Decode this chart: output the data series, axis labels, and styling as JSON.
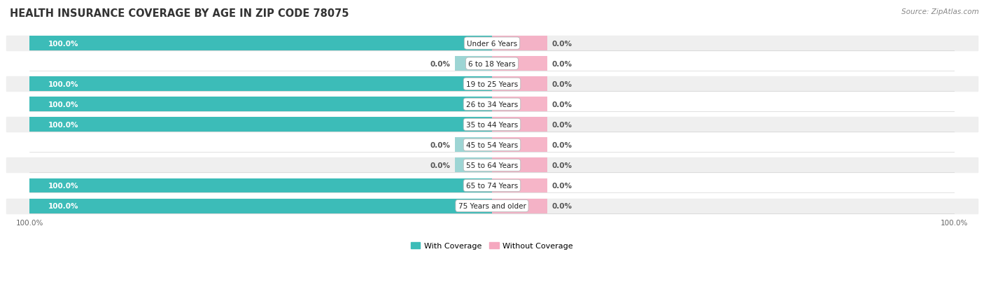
{
  "title": "HEALTH INSURANCE COVERAGE BY AGE IN ZIP CODE 78075",
  "source": "Source: ZipAtlas.com",
  "age_groups": [
    "Under 6 Years",
    "6 to 18 Years",
    "19 to 25 Years",
    "26 to 34 Years",
    "35 to 44 Years",
    "45 to 54 Years",
    "55 to 64 Years",
    "65 to 74 Years",
    "75 Years and older"
  ],
  "with_coverage": [
    100.0,
    0.0,
    100.0,
    100.0,
    100.0,
    0.0,
    0.0,
    100.0,
    100.0
  ],
  "without_coverage": [
    0.0,
    0.0,
    0.0,
    0.0,
    0.0,
    0.0,
    0.0,
    0.0,
    0.0
  ],
  "color_with": "#3cbcb8",
  "color_with_zero": "#9dd5d4",
  "color_without": "#f5a8bf",
  "bg_row_light": "#efefef",
  "bg_row_white": "#ffffff",
  "label_white": "#ffffff",
  "label_dark": "#555555",
  "title_fontsize": 10.5,
  "source_fontsize": 7.5,
  "bar_label_fontsize": 7.5,
  "category_fontsize": 7.5,
  "legend_fontsize": 8,
  "tick_fontsize": 7.5
}
